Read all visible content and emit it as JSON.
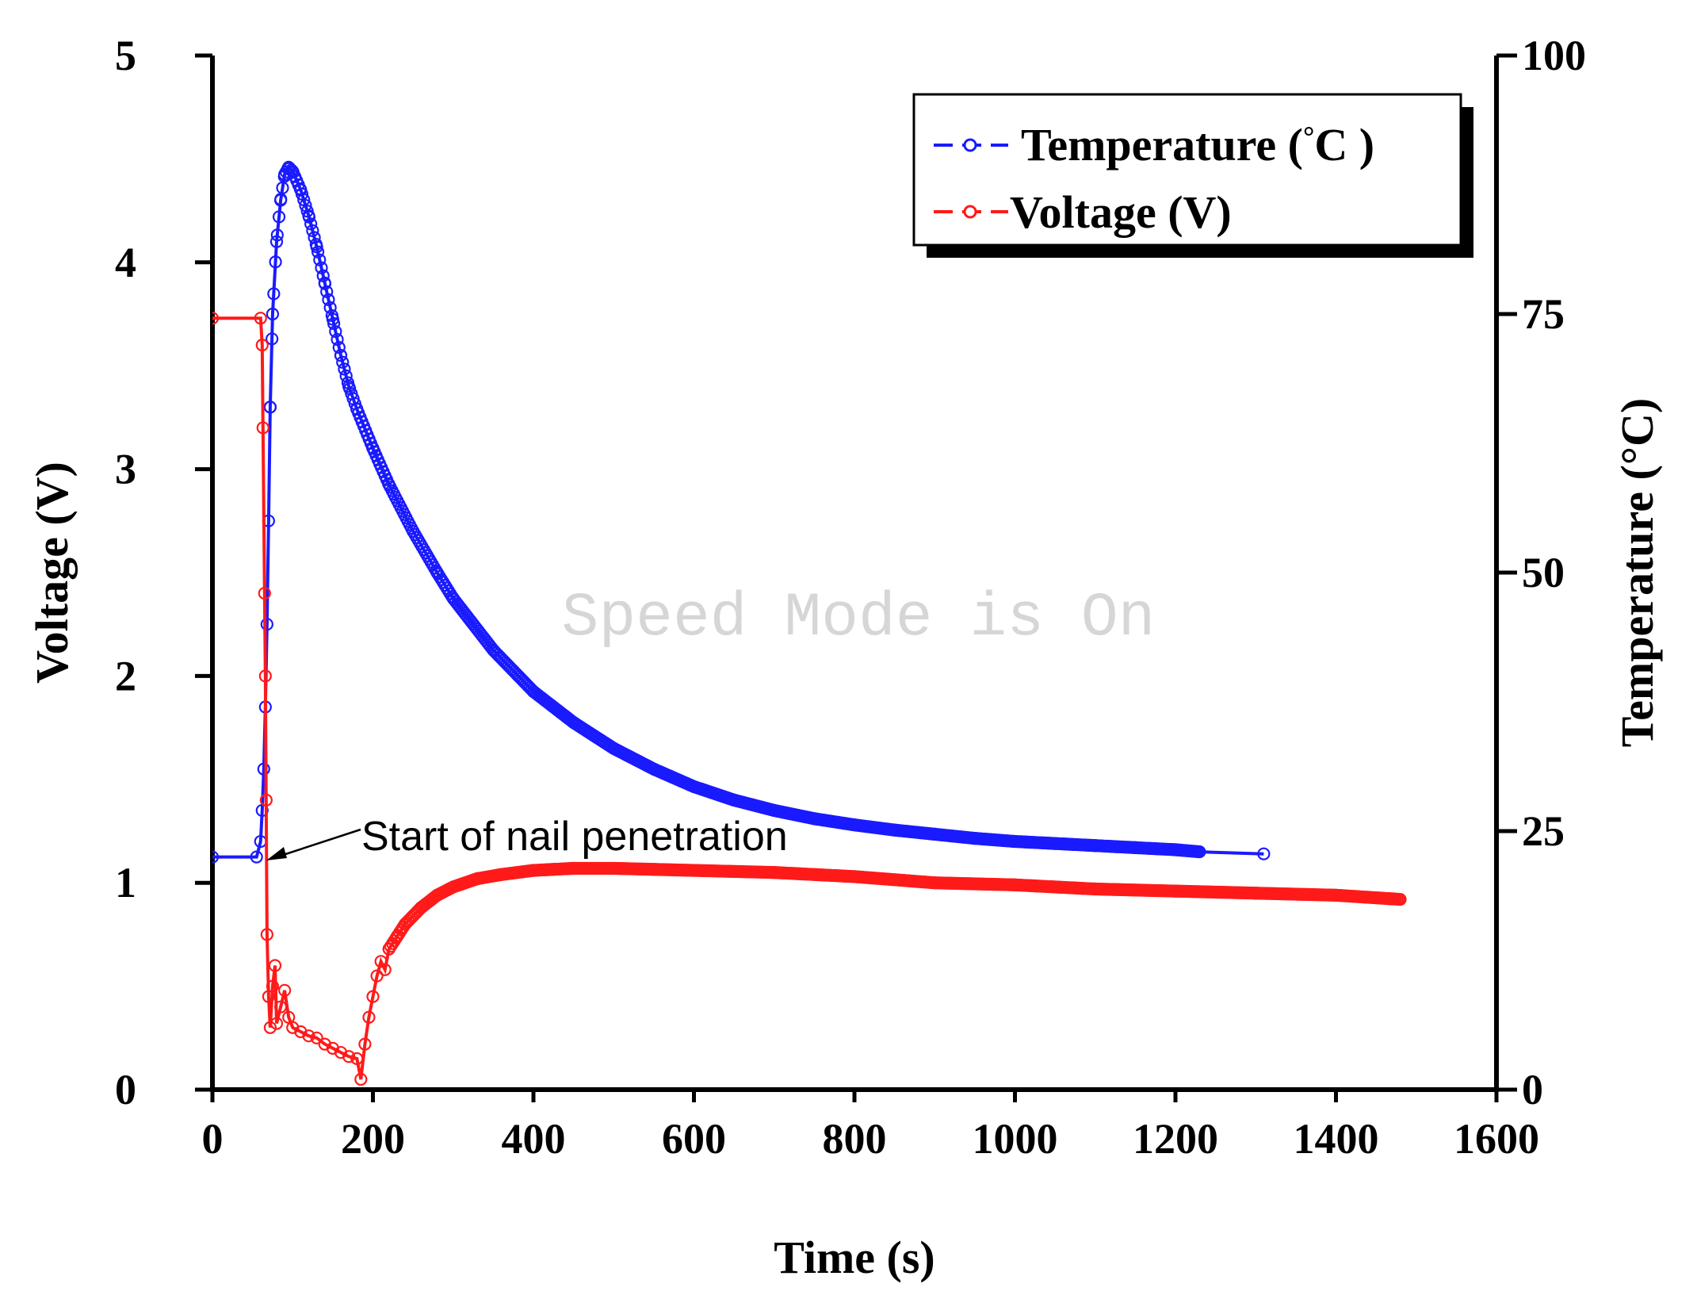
{
  "chart_data": {
    "type": "line",
    "title": "",
    "xlabel": "Time (s)",
    "ylabel": "Voltage (V)",
    "y2label": "Temperature (°C)",
    "xlim": [
      0,
      1600
    ],
    "ylim": [
      0,
      5
    ],
    "y2lim": [
      0,
      100
    ],
    "x_ticks": [
      0,
      200,
      400,
      600,
      800,
      1000,
      1200,
      1400,
      1600
    ],
    "y_ticks": [
      0,
      1,
      2,
      3,
      4,
      5
    ],
    "y2_ticks": [
      0,
      25,
      50,
      75,
      100
    ],
    "grid": false,
    "legend_position": "top-right",
    "series": [
      {
        "name": "Temperature (°C )",
        "axis": "right",
        "color": "#1a1aff",
        "marker": "circle",
        "x": [
          0,
          55,
          60,
          62,
          64,
          66,
          68,
          70,
          72,
          75,
          80,
          85,
          90,
          95,
          100,
          110,
          120,
          130,
          140,
          150,
          160,
          170,
          180,
          200,
          220,
          250,
          280,
          300,
          350,
          400,
          450,
          500,
          550,
          600,
          650,
          700,
          750,
          800,
          850,
          900,
          950,
          1000,
          1050,
          1100,
          1150,
          1200,
          1230,
          1310
        ],
        "values": [
          22.5,
          22.5,
          24,
          27,
          31,
          37,
          45,
          55,
          66,
          75,
          82,
          86,
          88.5,
          89.2,
          88.8,
          87,
          84.5,
          81.5,
          78,
          74.5,
          71,
          68,
          65.8,
          62,
          58.5,
          54,
          50,
          47.5,
          42.5,
          38.5,
          35.5,
          33,
          31,
          29.3,
          28,
          27,
          26.2,
          25.6,
          25.1,
          24.7,
          24.3,
          24,
          23.8,
          23.6,
          23.4,
          23.2,
          23.0,
          22.8
        ]
      },
      {
        "name": "Voltage (V)",
        "axis": "left",
        "color": "#ff1a1a",
        "marker": "circle",
        "x": [
          0,
          60,
          62,
          63,
          65,
          66,
          67,
          68,
          70,
          72,
          75,
          78,
          80,
          85,
          90,
          95,
          100,
          110,
          120,
          130,
          140,
          150,
          160,
          170,
          180,
          185,
          190,
          195,
          200,
          205,
          210,
          215,
          220,
          230,
          240,
          260,
          280,
          300,
          330,
          360,
          400,
          450,
          500,
          550,
          600,
          700,
          800,
          900,
          1000,
          1100,
          1200,
          1300,
          1400,
          1480
        ],
        "values": [
          3.73,
          3.73,
          3.6,
          3.2,
          2.4,
          2.0,
          1.4,
          0.75,
          0.45,
          0.3,
          0.5,
          0.6,
          0.32,
          0.4,
          0.48,
          0.35,
          0.3,
          0.28,
          0.26,
          0.25,
          0.22,
          0.2,
          0.18,
          0.16,
          0.15,
          0.05,
          0.22,
          0.35,
          0.45,
          0.55,
          0.62,
          0.58,
          0.68,
          0.74,
          0.8,
          0.88,
          0.94,
          0.98,
          1.02,
          1.04,
          1.06,
          1.07,
          1.07,
          1.065,
          1.06,
          1.05,
          1.03,
          1.0,
          0.99,
          0.97,
          0.96,
          0.95,
          0.94,
          0.92
        ]
      }
    ],
    "annotations": [
      {
        "text": "Start of nail penetration",
        "x": 70,
        "y": 1.14
      }
    ],
    "watermark": "Speed Mode is On",
    "legend_mark": "°"
  }
}
